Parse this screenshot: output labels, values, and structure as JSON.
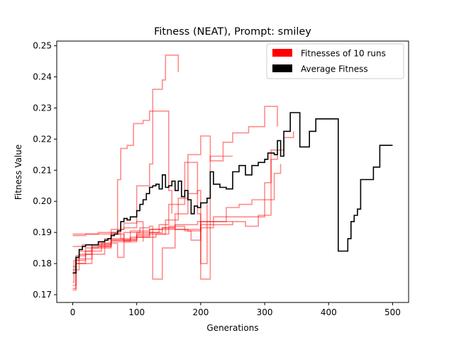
{
  "chart_data": {
    "type": "line",
    "title": "Fitness (NEAT), Prompt: smiley",
    "xlabel": "Generations",
    "ylabel": "Fitness Value",
    "xlim": [
      -25,
      525
    ],
    "ylim": [
      0.1675,
      0.2515
    ],
    "xticks": [
      0,
      100,
      200,
      300,
      400,
      500
    ],
    "yticks": [
      0.17,
      0.18,
      0.19,
      0.2,
      0.21,
      0.22,
      0.23,
      0.24,
      0.25
    ],
    "ytick_labels": [
      "0.17",
      "0.18",
      "0.19",
      "0.20",
      "0.21",
      "0.22",
      "0.23",
      "0.24",
      "0.25"
    ],
    "grid": false,
    "legend_position": "top-right",
    "legend": [
      {
        "label": "Fitnesses of 10 runs",
        "color": "#ff0000"
      },
      {
        "label": "Average Fitness",
        "color": "#000000"
      }
    ],
    "run_color": "#ff0000",
    "run_opacity": 0.45,
    "average_color": "#000000",
    "runs": [
      {
        "x": [
          0,
          2,
          10,
          30,
          60,
          80,
          100,
          120,
          125,
          140,
          145,
          165
        ],
        "y": [
          0.174,
          0.181,
          0.184,
          0.186,
          0.191,
          0.193,
          0.205,
          0.212,
          0.236,
          0.239,
          0.247,
          0.2415
        ]
      },
      {
        "x": [
          0,
          5,
          20,
          50,
          60,
          70,
          75,
          85,
          95,
          110,
          120,
          135,
          150,
          155
        ],
        "y": [
          0.172,
          0.18,
          0.183,
          0.188,
          0.19,
          0.207,
          0.217,
          0.218,
          0.225,
          0.226,
          0.229,
          0.229,
          0.2035,
          0.196
        ]
      },
      {
        "x": [
          0,
          3,
          15,
          40,
          60,
          80,
          105,
          120,
          125,
          140,
          160,
          180,
          195,
          200,
          215,
          250
        ],
        "y": [
          0.1855,
          0.1855,
          0.186,
          0.1865,
          0.188,
          0.19,
          0.1915,
          0.192,
          0.175,
          0.185,
          0.196,
          0.2025,
          0.2035,
          0.175,
          0.2145,
          0.2145
        ]
      },
      {
        "x": [
          0,
          5,
          20,
          50,
          75,
          100,
          130,
          145,
          165,
          180,
          200,
          215,
          235,
          250,
          275,
          300,
          315,
          320
        ],
        "y": [
          0.189,
          0.189,
          0.1895,
          0.1895,
          0.188,
          0.1885,
          0.1895,
          0.194,
          0.201,
          0.215,
          0.221,
          0.213,
          0.219,
          0.222,
          0.224,
          0.2305,
          0.2305,
          0.224
        ]
      },
      {
        "x": [
          0,
          5,
          20,
          45,
          60,
          80,
          100,
          120,
          140,
          160,
          180,
          195,
          200,
          250
        ],
        "y": [
          0.1715,
          0.181,
          0.184,
          0.1865,
          0.1895,
          0.187,
          0.189,
          0.19,
          0.1915,
          0.1925,
          0.1925,
          0.1935,
          0.1935,
          0.1935
        ]
      },
      {
        "x": [
          0,
          5,
          20,
          40,
          60,
          70,
          80,
          100,
          120,
          140,
          160,
          180,
          200,
          220,
          240,
          260,
          280,
          300,
          310,
          320
        ],
        "y": [
          0.179,
          0.1825,
          0.185,
          0.1855,
          0.1865,
          0.182,
          0.1875,
          0.19,
          0.191,
          0.1915,
          0.191,
          0.1905,
          0.1915,
          0.195,
          0.198,
          0.199,
          0.2005,
          0.206,
          0.2135,
          0.2155
        ]
      },
      {
        "x": [
          0,
          10,
          30,
          60,
          90,
          120,
          135,
          150,
          175,
          190,
          195,
          200,
          210
        ],
        "y": [
          0.178,
          0.183,
          0.186,
          0.187,
          0.1885,
          0.19,
          0.1925,
          0.199,
          0.2125,
          0.2125,
          0.196,
          0.18,
          0.199
        ]
      },
      {
        "x": [
          0,
          5,
          30,
          60,
          90,
          120,
          150,
          175,
          185,
          200,
          240,
          270,
          300,
          315,
          325
        ],
        "y": [
          0.173,
          0.18,
          0.185,
          0.1875,
          0.1905,
          0.191,
          0.192,
          0.1905,
          0.1875,
          0.1935,
          0.195,
          0.195,
          0.2005,
          0.209,
          0.212
        ]
      },
      {
        "x": [
          0,
          5,
          20,
          40,
          60,
          75,
          80,
          100,
          110
        ],
        "y": [
          0.1895,
          0.1895,
          0.1895,
          0.19,
          0.19,
          0.191,
          0.1915,
          0.1935,
          0.187
        ]
      },
      {
        "x": [
          0,
          5,
          30,
          60,
          100,
          150,
          200,
          250,
          270,
          290,
          310,
          330,
          345
        ],
        "y": [
          0.177,
          0.1815,
          0.1855,
          0.1875,
          0.1895,
          0.191,
          0.1925,
          0.1935,
          0.192,
          0.1955,
          0.2165,
          0.2205,
          0.2225
        ]
      }
    ],
    "average": {
      "name": "Average Fitness",
      "x": [
        0,
        5,
        10,
        15,
        20,
        30,
        40,
        50,
        55,
        60,
        65,
        70,
        75,
        80,
        85,
        90,
        95,
        100,
        105,
        110,
        115,
        120,
        125,
        130,
        135,
        140,
        145,
        150,
        155,
        160,
        165,
        170,
        175,
        180,
        185,
        190,
        195,
        200,
        205,
        210,
        215,
        220,
        230,
        240,
        250,
        260,
        270,
        280,
        290,
        300,
        305,
        310,
        315,
        320,
        325,
        330,
        335,
        340,
        350,
        355,
        365,
        370,
        380,
        400,
        410,
        415,
        420,
        425,
        430,
        435,
        440,
        445,
        450,
        455,
        465,
        470,
        475,
        480,
        500
      ],
      "y": [
        0.177,
        0.182,
        0.1845,
        0.1855,
        0.186,
        0.186,
        0.187,
        0.1875,
        0.188,
        0.189,
        0.1895,
        0.1905,
        0.1935,
        0.1945,
        0.194,
        0.195,
        0.195,
        0.197,
        0.199,
        0.2005,
        0.2025,
        0.2045,
        0.205,
        0.2055,
        0.204,
        0.2085,
        0.2045,
        0.205,
        0.2065,
        0.2035,
        0.2065,
        0.2015,
        0.2035,
        0.2005,
        0.196,
        0.1985,
        0.198,
        0.1995,
        0.1995,
        0.201,
        0.2095,
        0.2055,
        0.2045,
        0.204,
        0.2095,
        0.2115,
        0.2085,
        0.2115,
        0.2125,
        0.2135,
        0.2155,
        0.2155,
        0.215,
        0.2195,
        0.2145,
        0.2225,
        0.2225,
        0.2285,
        0.2285,
        0.2175,
        0.2175,
        0.2225,
        0.2265,
        0.2265,
        0.2265,
        0.184,
        0.184,
        0.184,
        0.188,
        0.1935,
        0.1955,
        0.1975,
        0.207,
        0.207,
        0.207,
        0.211,
        0.211,
        0.218,
        0.218
      ]
    }
  }
}
